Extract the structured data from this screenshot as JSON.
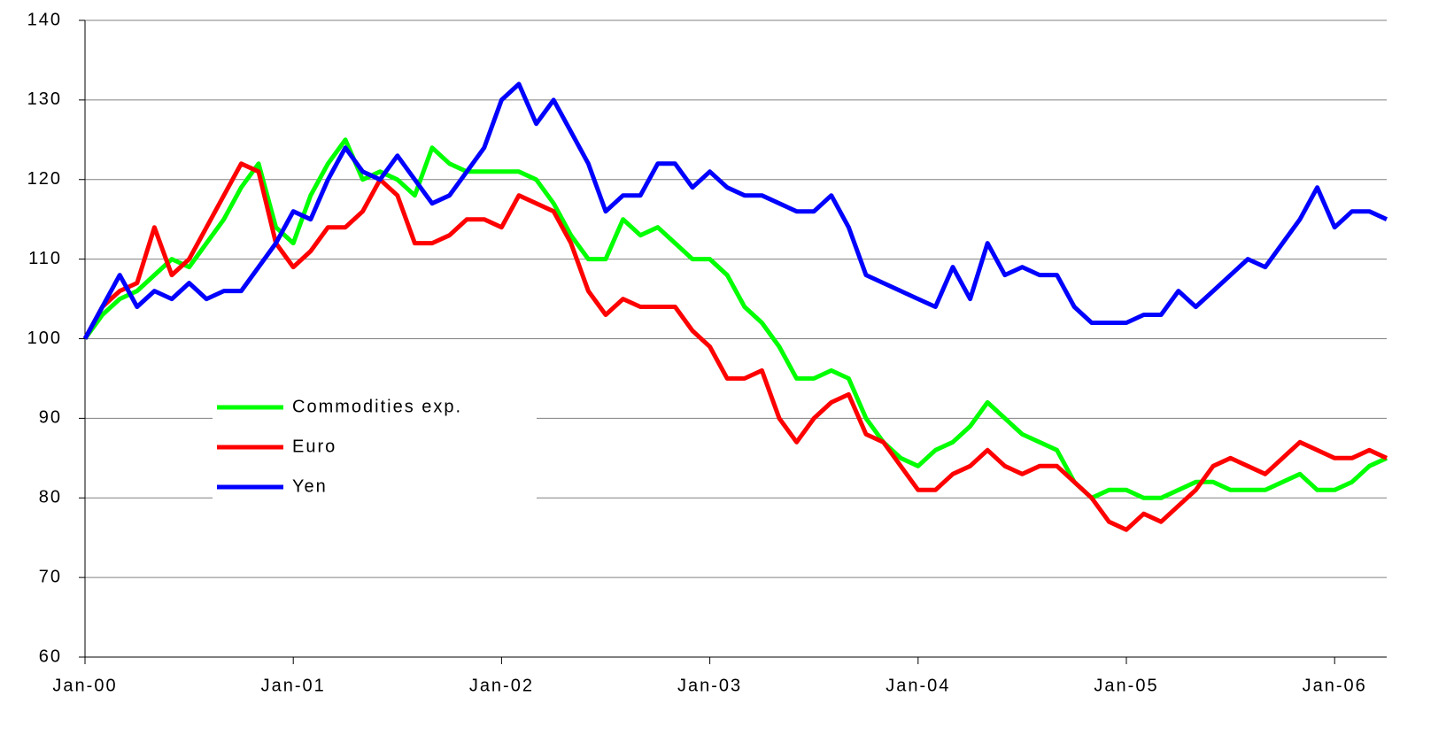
{
  "chart_data": {
    "type": "line",
    "x": [
      "2000-01",
      "2000-02",
      "2000-03",
      "2000-04",
      "2000-05",
      "2000-06",
      "2000-07",
      "2000-08",
      "2000-09",
      "2000-10",
      "2000-11",
      "2000-12",
      "2001-01",
      "2001-02",
      "2001-03",
      "2001-04",
      "2001-05",
      "2001-06",
      "2001-07",
      "2001-08",
      "2001-09",
      "2001-10",
      "2001-11",
      "2001-12",
      "2002-01",
      "2002-02",
      "2002-03",
      "2002-04",
      "2002-05",
      "2002-06",
      "2002-07",
      "2002-08",
      "2002-09",
      "2002-10",
      "2002-11",
      "2002-12",
      "2003-01",
      "2003-02",
      "2003-03",
      "2003-04",
      "2003-05",
      "2003-06",
      "2003-07",
      "2003-08",
      "2003-09",
      "2003-10",
      "2003-11",
      "2003-12",
      "2004-01",
      "2004-02",
      "2004-03",
      "2004-04",
      "2004-05",
      "2004-06",
      "2004-07",
      "2004-08",
      "2004-09",
      "2004-10",
      "2004-11",
      "2004-12",
      "2005-01",
      "2005-02",
      "2005-03",
      "2005-04",
      "2005-05",
      "2005-06",
      "2005-07",
      "2005-08",
      "2005-09",
      "2005-10",
      "2005-11",
      "2005-12",
      "2006-01",
      "2006-02",
      "2006-03",
      "2006-04"
    ],
    "series": [
      {
        "name": "Commodities exp.",
        "color": "#00ff00",
        "values": [
          100,
          103,
          105,
          106,
          108,
          110,
          109,
          112,
          115,
          119,
          122,
          114,
          112,
          118,
          122,
          125,
          120,
          121,
          120,
          118,
          124,
          122,
          121,
          121,
          121,
          121,
          120,
          117,
          113,
          110,
          110,
          115,
          113,
          114,
          112,
          110,
          110,
          108,
          104,
          102,
          99,
          95,
          95,
          96,
          95,
          90,
          87,
          85,
          84,
          86,
          87,
          89,
          92,
          90,
          88,
          87,
          86,
          82,
          80,
          81,
          81,
          80,
          80,
          81,
          82,
          82,
          81,
          81,
          81,
          82,
          83,
          81,
          81,
          82,
          84,
          85
        ]
      },
      {
        "name": "Euro",
        "color": "#ff0000",
        "values": [
          100,
          104,
          106,
          107,
          114,
          108,
          110,
          114,
          118,
          122,
          121,
          112,
          109,
          111,
          114,
          114,
          116,
          120,
          118,
          112,
          112,
          113,
          115,
          115,
          114,
          118,
          117,
          116,
          112,
          106,
          103,
          105,
          104,
          104,
          104,
          101,
          99,
          95,
          95,
          96,
          90,
          87,
          90,
          92,
          93,
          88,
          87,
          84,
          81,
          81,
          83,
          84,
          86,
          84,
          83,
          84,
          84,
          82,
          80,
          77,
          76,
          78,
          77,
          79,
          81,
          84,
          85,
          84,
          83,
          85,
          87,
          86,
          85,
          85,
          86,
          85
        ]
      },
      {
        "name": "Yen",
        "color": "#0000ff",
        "values": [
          100,
          104,
          108,
          104,
          106,
          105,
          107,
          105,
          106,
          106,
          109,
          112,
          116,
          115,
          120,
          124,
          121,
          120,
          123,
          120,
          117,
          118,
          121,
          124,
          130,
          132,
          127,
          130,
          126,
          122,
          116,
          118,
          118,
          122,
          122,
          119,
          121,
          119,
          118,
          118,
          117,
          116,
          116,
          118,
          114,
          108,
          107,
          106,
          105,
          104,
          109,
          105,
          112,
          108,
          109,
          108,
          108,
          104,
          102,
          102,
          102,
          103,
          103,
          106,
          104,
          106,
          108,
          110,
          109,
          112,
          115,
          119,
          114,
          116,
          116,
          115
        ]
      }
    ],
    "xlim": [
      "2000-01",
      "2006-04"
    ],
    "xticks": [
      {
        "value": "2000-01",
        "label": "Jan-00"
      },
      {
        "value": "2001-01",
        "label": "Jan-01"
      },
      {
        "value": "2002-01",
        "label": "Jan-02"
      },
      {
        "value": "2003-01",
        "label": "Jan-03"
      },
      {
        "value": "2004-01",
        "label": "Jan-04"
      },
      {
        "value": "2005-01",
        "label": "Jan-05"
      },
      {
        "value": "2006-01",
        "label": "Jan-06"
      }
    ],
    "ylim": [
      60,
      140
    ],
    "yticks": [
      60,
      70,
      80,
      90,
      100,
      110,
      120,
      130,
      140
    ],
    "grid": true,
    "legend": "left"
  }
}
